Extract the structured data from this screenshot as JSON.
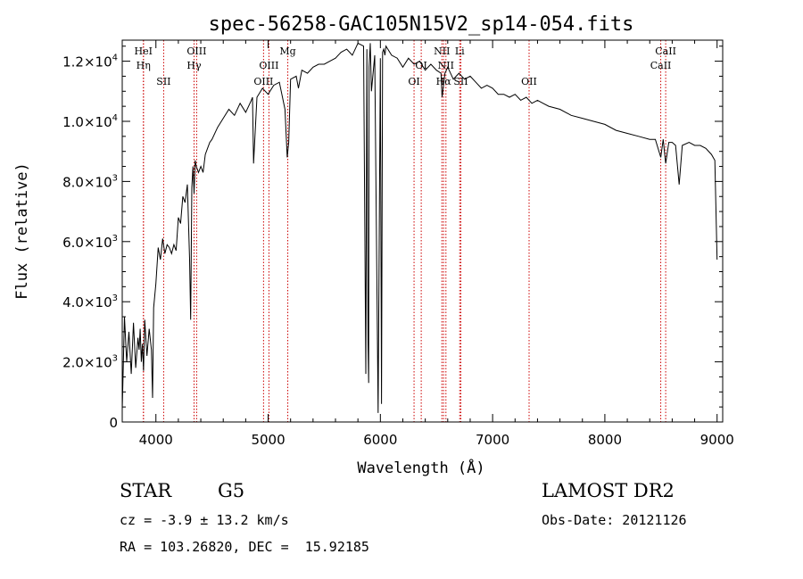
{
  "chart_data": {
    "type": "line",
    "title": "spec-56258-GAC105N15V2_sp14-054.fits",
    "xlabel": "Wavelength (Å)",
    "ylabel": "Flux (relative)",
    "xlim": [
      3700,
      9050
    ],
    "ylim": [
      0,
      12700
    ],
    "x_ticks": [
      4000,
      5000,
      6000,
      7000,
      8000,
      9000
    ],
    "y_ticks": [
      {
        "value": 0,
        "mant": "0",
        "exp": ""
      },
      {
        "value": 2000,
        "mant": "2.0×10",
        "exp": "3"
      },
      {
        "value": 4000,
        "mant": "4.0×10",
        "exp": "3"
      },
      {
        "value": 6000,
        "mant": "6.0×10",
        "exp": "3"
      },
      {
        "value": 8000,
        "mant": "8.0×10",
        "exp": "3"
      },
      {
        "value": 10000,
        "mant": "1.0×10",
        "exp": "4"
      },
      {
        "value": 12000,
        "mant": "1.2×10",
        "exp": "4"
      }
    ],
    "grid": false,
    "line_color": "#000000",
    "marker_color": "#cc0000",
    "spectrum": {
      "x": [
        3700,
        3720,
        3740,
        3760,
        3780,
        3800,
        3820,
        3840,
        3850,
        3860,
        3870,
        3880,
        3890,
        3900,
        3920,
        3940,
        3960,
        3970,
        3980,
        4000,
        4020,
        4040,
        4060,
        4080,
        4100,
        4120,
        4140,
        4160,
        4180,
        4200,
        4220,
        4240,
        4260,
        4280,
        4300,
        4310,
        4320,
        4330,
        4340,
        4350,
        4360,
        4380,
        4400,
        4420,
        4440,
        4460,
        4480,
        4500,
        4550,
        4600,
        4650,
        4700,
        4750,
        4800,
        4850,
        4861,
        4870,
        4900,
        4950,
        5000,
        5050,
        5100,
        5150,
        5170,
        5183,
        5200,
        5250,
        5270,
        5300,
        5350,
        5400,
        5450,
        5500,
        5550,
        5600,
        5650,
        5700,
        5750,
        5800,
        5850,
        5870,
        5880,
        5890,
        5896,
        5900,
        5910,
        5920,
        5950,
        5980,
        6000,
        6010,
        6020,
        6030,
        6040,
        6050,
        6100,
        6150,
        6200,
        6250,
        6300,
        6350,
        6400,
        6450,
        6500,
        6540,
        6550,
        6563,
        6575,
        6600,
        6650,
        6700,
        6750,
        6800,
        6850,
        6900,
        6950,
        7000,
        7050,
        7100,
        7150,
        7200,
        7250,
        7300,
        7350,
        7400,
        7450,
        7500,
        7600,
        7700,
        7800,
        7900,
        8000,
        8100,
        8200,
        8300,
        8400,
        8450,
        8498,
        8520,
        8542,
        8570,
        8600,
        8630,
        8662,
        8690,
        8750,
        8800,
        8850,
        8900,
        8950,
        8980,
        9000
      ],
      "y": [
        400,
        3500,
        2000,
        3000,
        1600,
        3300,
        1800,
        2800,
        2400,
        3100,
        2000,
        2600,
        1700,
        3400,
        2200,
        3100,
        2400,
        800,
        3800,
        4600,
        5800,
        5400,
        6100,
        5600,
        5900,
        5800,
        5600,
        5900,
        5700,
        6800,
        6600,
        7500,
        7300,
        7900,
        5400,
        3400,
        7800,
        8500,
        7600,
        8700,
        8500,
        8300,
        8500,
        8300,
        8900,
        9100,
        9300,
        9400,
        9800,
        10100,
        10400,
        10200,
        10600,
        10300,
        10700,
        10800,
        8600,
        10800,
        11100,
        10900,
        11200,
        11300,
        10400,
        8800,
        9300,
        11400,
        11500,
        11100,
        11700,
        11600,
        11800,
        11900,
        11900,
        12000,
        12100,
        12300,
        12400,
        12200,
        12600,
        12500,
        1600,
        12400,
        2600,
        1300,
        11800,
        12600,
        11000,
        12200,
        300,
        12100,
        600,
        12300,
        12400,
        12200,
        12500,
        12200,
        12100,
        11800,
        12100,
        11900,
        12000,
        11700,
        11900,
        11700,
        11600,
        10800,
        11200,
        11600,
        11800,
        11400,
        11600,
        11400,
        11500,
        11300,
        11100,
        11200,
        11100,
        10900,
        10900,
        10800,
        10900,
        10700,
        10800,
        10600,
        10700,
        10600,
        10500,
        10400,
        10200,
        10100,
        10000,
        9900,
        9700,
        9600,
        9500,
        9400,
        9400,
        8800,
        9400,
        8600,
        9300,
        9300,
        9200,
        7900,
        9200,
        9300,
        9200,
        9200,
        9100,
        8900,
        8700,
        5400
      ]
    },
    "line_markers": [
      {
        "x": 3889,
        "label": "HeI",
        "label_row": 1
      },
      {
        "x": 3889,
        "label": "Hη",
        "label_row": 2
      },
      {
        "x": 4069,
        "label": "SII",
        "label_row": 3
      },
      {
        "x": 4340,
        "label": "Hγ",
        "label_row": 2
      },
      {
        "x": 4363,
        "label": "OIII",
        "label_row": 1
      },
      {
        "x": 4959,
        "label": "OIII",
        "label_row": 3
      },
      {
        "x": 5007,
        "label": "OIII",
        "label_row": 2
      },
      {
        "x": 5175,
        "label": "Mg",
        "label_row": 1
      },
      {
        "x": 6300,
        "label": "OI",
        "label_row": 3
      },
      {
        "x": 6364,
        "label": "OI",
        "label_row": 2
      },
      {
        "x": 6548,
        "label": "NII",
        "label_row": 1
      },
      {
        "x": 6563,
        "label": "Hα",
        "label_row": 3
      },
      {
        "x": 6584,
        "label": "NII",
        "label_row": 2
      },
      {
        "x": 6707,
        "label": "Li",
        "label_row": 1
      },
      {
        "x": 6717,
        "label": "SII",
        "label_row": 3
      },
      {
        "x": 7325,
        "label": "OII",
        "label_row": 3
      },
      {
        "x": 8498,
        "label": "CaII",
        "label_row": 2
      },
      {
        "x": 8542,
        "label": "CaII",
        "label_row": 1
      }
    ]
  },
  "info": {
    "class_label": "STAR",
    "subclass_label": "G5",
    "survey_label": "LAMOST DR2",
    "redshift_text": "cz = -3.9 ± 13.2 km/s",
    "obs_date_text": "Obs-Date: 20121126",
    "coords_text": "RA = 103.26820, DEC =  15.92185"
  }
}
